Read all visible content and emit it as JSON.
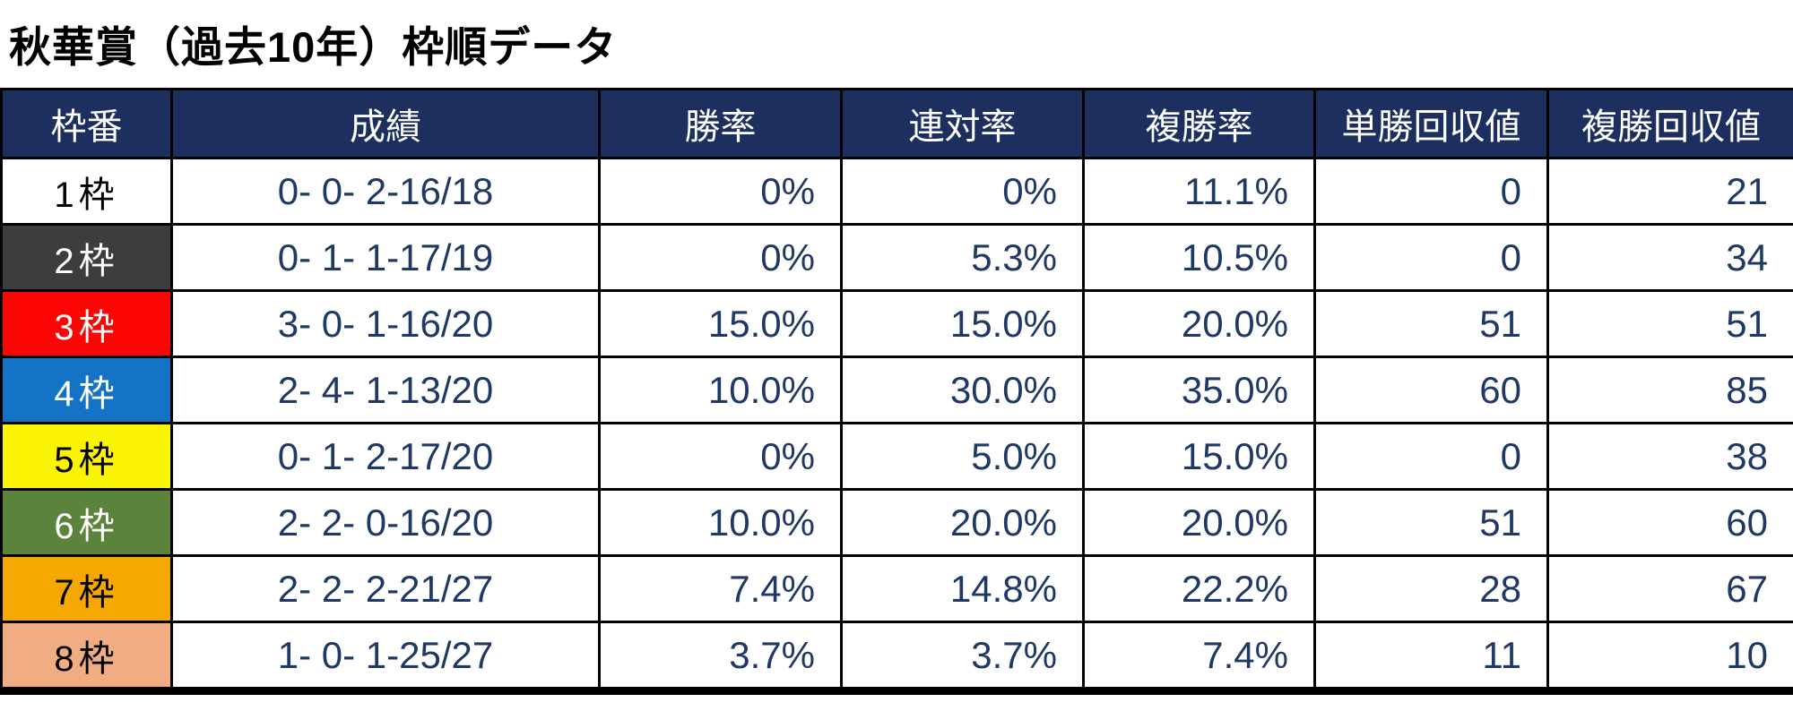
{
  "title": "秋華賞（過去10年）枠順データ",
  "colors": {
    "header_bg": "#1c2f5e",
    "header_text": "#ffffff",
    "data_text": "#1f3864",
    "border": "#000000",
    "waku1": "#ffffff",
    "waku2": "#3d3d3d",
    "waku3": "#fb0505",
    "waku4": "#1573c6",
    "waku5": "#fbf304",
    "waku6": "#5b833b",
    "waku7": "#f6a802",
    "waku8": "#f0ad84"
  },
  "chart_data": {
    "type": "table",
    "title": "秋華賞（過去10年）枠順データ",
    "columns": [
      "枠番",
      "成績",
      "勝率",
      "連対率",
      "複勝率",
      "単勝回収値",
      "複勝回収値"
    ],
    "rows": [
      {
        "waku": "1枠",
        "record": "0- 0- 2-16/18",
        "win_rate": "0%",
        "quinella_rate": "0%",
        "show_rate": "11.1%",
        "win_roi": "0",
        "show_roi": "21",
        "bg": "#ffffff",
        "fg": "#000000"
      },
      {
        "waku": "2枠",
        "record": "0- 1- 1-17/19",
        "win_rate": "0%",
        "quinella_rate": "5.3%",
        "show_rate": "10.5%",
        "win_roi": "0",
        "show_roi": "34",
        "bg": "#3d3d3d",
        "fg": "#ffffff"
      },
      {
        "waku": "3枠",
        "record": "3- 0- 1-16/20",
        "win_rate": "15.0%",
        "quinella_rate": "15.0%",
        "show_rate": "20.0%",
        "win_roi": "51",
        "show_roi": "51",
        "bg": "#fb0505",
        "fg": "#ffffff"
      },
      {
        "waku": "4枠",
        "record": "2- 4- 1-13/20",
        "win_rate": "10.0%",
        "quinella_rate": "30.0%",
        "show_rate": "35.0%",
        "win_roi": "60",
        "show_roi": "85",
        "bg": "#1573c6",
        "fg": "#ffffff"
      },
      {
        "waku": "5枠",
        "record": "0- 1- 2-17/20",
        "win_rate": "0%",
        "quinella_rate": "5.0%",
        "show_rate": "15.0%",
        "win_roi": "0",
        "show_roi": "38",
        "bg": "#fbf304",
        "fg": "#000000"
      },
      {
        "waku": "6枠",
        "record": "2- 2- 0-16/20",
        "win_rate": "10.0%",
        "quinella_rate": "20.0%",
        "show_rate": "20.0%",
        "win_roi": "51",
        "show_roi": "60",
        "bg": "#5b833b",
        "fg": "#ffffff"
      },
      {
        "waku": "7枠",
        "record": "2- 2- 2-21/27",
        "win_rate": "7.4%",
        "quinella_rate": "14.8%",
        "show_rate": "22.2%",
        "win_roi": "28",
        "show_roi": "67",
        "bg": "#f6a802",
        "fg": "#000000"
      },
      {
        "waku": "8枠",
        "record": "1- 0- 1-25/27",
        "win_rate": "3.7%",
        "quinella_rate": "3.7%",
        "show_rate": "7.4%",
        "win_roi": "11",
        "show_roi": "10",
        "bg": "#f0ad84",
        "fg": "#000000"
      }
    ]
  }
}
